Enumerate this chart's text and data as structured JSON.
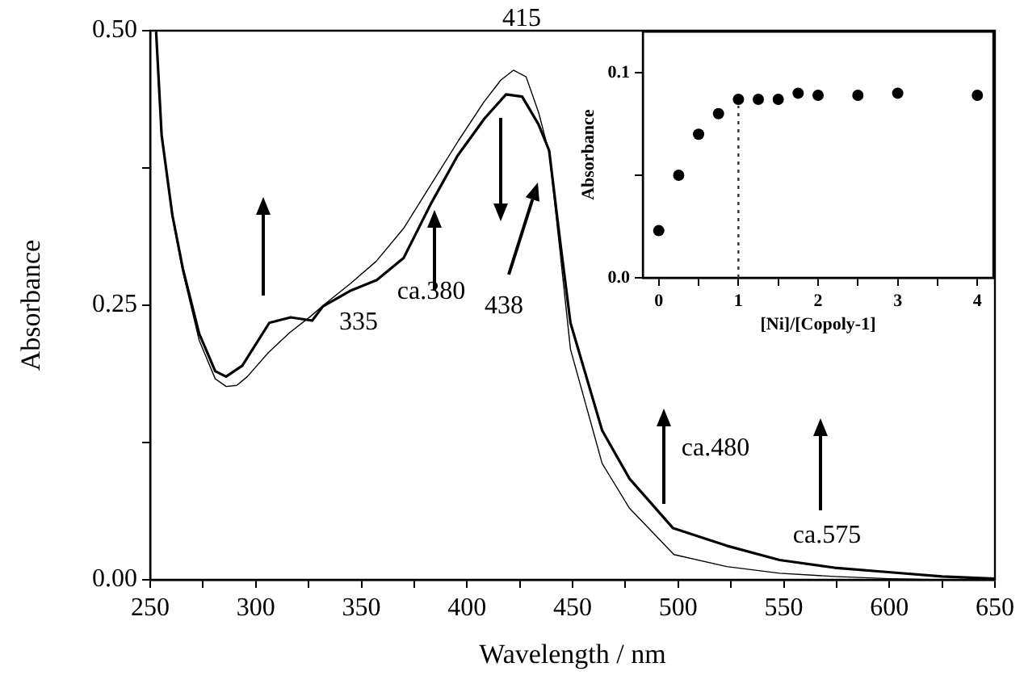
{
  "chart_data": [
    {
      "type": "line",
      "xlabel": "Wavelength / nm",
      "ylabel": "Absorbance",
      "marker": "none",
      "xlim": [
        250,
        650
      ],
      "ylim": [
        0,
        0.5
      ],
      "xticks": [
        250,
        {
          "value": 275,
          "label": null
        },
        300,
        {
          "value": 325,
          "label": null
        },
        350,
        {
          "value": 375,
          "label": null
        },
        400,
        {
          "value": 425,
          "label": null
        },
        450,
        {
          "value": 475,
          "label": null
        },
        500,
        {
          "value": 525,
          "label": null
        },
        550,
        {
          "value": 575,
          "label": null
        },
        600,
        {
          "value": 625,
          "label": null
        },
        650
      ],
      "yticks": [
        {
          "value": 0,
          "label": "0.00"
        },
        {
          "value": 0.125,
          "label": null
        },
        {
          "value": 0.25,
          "label": "0.25"
        },
        {
          "value": 0.375,
          "label": null
        },
        {
          "value": 0.5,
          "label": "0.50"
        }
      ],
      "annotations": [
        "415",
        "335",
        "ca.380",
        "438",
        "ca.480",
        "ca.575"
      ],
      "series": [
        {
          "color": "#000000",
          "x": [
            252.8,
            255.4,
            260.5,
            265.5,
            273.2,
            280.8,
            286,
            291,
            296,
            306,
            316,
            326,
            332,
            345,
            357,
            370,
            383,
            396,
            408,
            416,
            422,
            428,
            434,
            439,
            444,
            449,
            464,
            477,
            498,
            523,
            548,
            574,
            600,
            625,
            650
          ],
          "values": [
            0.499,
            0.405,
            0.33,
            0.28,
            0.218,
            0.183,
            0.176,
            0.177,
            0.185,
            0.207,
            0.225,
            0.24,
            0.25,
            0.27,
            0.29,
            0.32,
            0.36,
            0.4,
            0.435,
            0.455,
            0.464,
            0.458,
            0.425,
            0.388,
            0.3,
            0.21,
            0.106,
            0.065,
            0.023,
            0.012,
            0.006,
            0.003,
            0.001,
            0.0,
            0.0
          ]
        },
        {
          "color": "#000000",
          "x": [
            252.8,
            255.4,
            260.5,
            265.5,
            273.2,
            280.8,
            285.9,
            293.6,
            306.4,
            316.5,
            326.7,
            331.8,
            344.6,
            357.3,
            370,
            382.8,
            395.5,
            408.3,
            418.5,
            426.1,
            433.8,
            438.9,
            444,
            449,
            464,
            477,
            497.6,
            523,
            548,
            574,
            599.5,
            625,
            650
          ],
          "values": [
            0.499,
            0.405,
            0.332,
            0.283,
            0.224,
            0.19,
            0.185,
            0.195,
            0.234,
            0.239,
            0.236,
            0.249,
            0.263,
            0.273,
            0.293,
            0.342,
            0.386,
            0.42,
            0.442,
            0.44,
            0.415,
            0.391,
            0.31,
            0.234,
            0.136,
            0.092,
            0.047,
            0.031,
            0.018,
            0.011,
            0.007,
            0.003,
            0.001
          ]
        }
      ]
    },
    {
      "type": "scatter",
      "xlabel": "[Ni]/[Copoly-1]",
      "ylabel": "Absorbance",
      "marker": "circle",
      "xlim": [
        -0.2,
        4.2
      ],
      "ylim": [
        0,
        0.12
      ],
      "xticks": [
        0,
        {
          "value": 0.5,
          "label": null
        },
        1,
        {
          "value": 1.5,
          "label": null
        },
        2,
        {
          "value": 2.5,
          "label": null
        },
        3,
        {
          "value": 3.5,
          "label": null
        },
        4
      ],
      "yticks": [
        {
          "value": 0,
          "label": "0.0"
        },
        {
          "value": 0.05,
          "label": null
        },
        {
          "value": 0.1,
          "label": "0.1"
        }
      ],
      "ref_lines": [
        {
          "axis": "x",
          "value": 1,
          "color": "#333333",
          "line_style": "dotted"
        }
      ],
      "series": [
        {
          "color": "#000000",
          "x": [
            0,
            0.25,
            0.5,
            0.75,
            1,
            1.25,
            1.5,
            1.75,
            2,
            2.5,
            3,
            4
          ],
          "values": [
            0.023,
            0.05,
            0.07,
            0.08,
            0.087,
            0.087,
            0.087,
            0.09,
            0.089,
            0.089,
            0.09,
            0.089
          ]
        }
      ]
    }
  ]
}
